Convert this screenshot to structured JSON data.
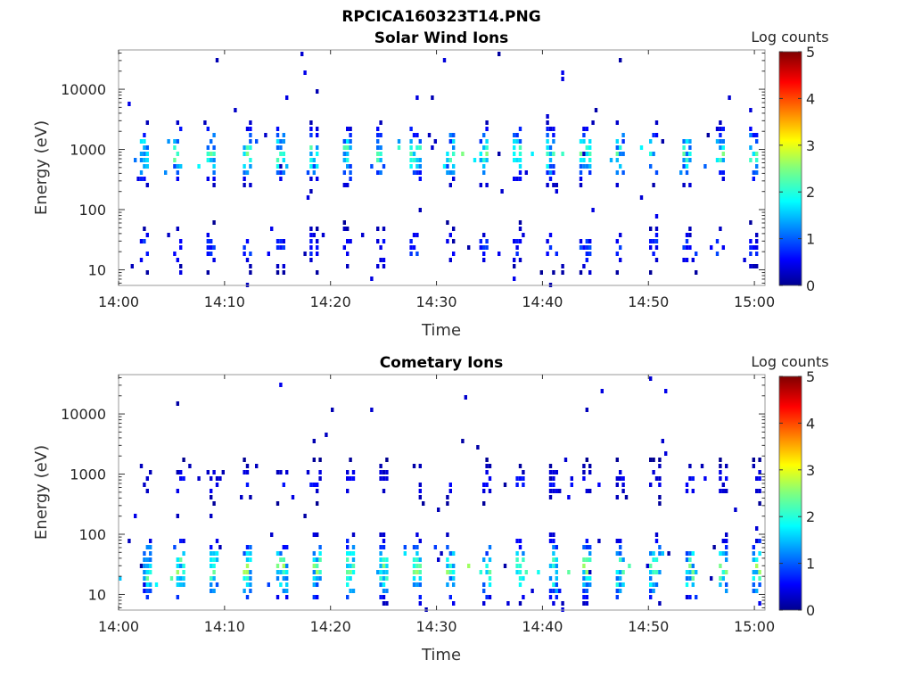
{
  "figure": {
    "title": "RPCICA160323T14.PNG"
  },
  "chart_data": [
    {
      "type": "heatmap",
      "title": "Solar Wind Ions",
      "xlabel": "Time",
      "ylabel": "Energy (eV)",
      "x_ticks": [
        "14:00",
        "14:10",
        "14:20",
        "14:30",
        "14:40",
        "14:50",
        "15:00"
      ],
      "x_range_minutes": [
        0,
        61
      ],
      "y_scale": "log",
      "y_ticks": [
        10,
        100,
        1000,
        10000
      ],
      "y_tick_labels": [
        "10",
        "100",
        "1000",
        "10000"
      ],
      "y_range": [
        5.5,
        45000
      ],
      "colorbar": {
        "label": "Log counts",
        "ticks": [
          "0",
          "1",
          "2",
          "3",
          "4",
          "5"
        ],
        "range": [
          0,
          5
        ],
        "colormap": "jet"
      },
      "description": "Periodic bursts roughly every 3.2 minutes; main population near 500-2500 eV peaking ~2-2.5 log counts at ~800 eV, secondary population near 15-60 eV at ~1 log counts",
      "bands": [
        {
          "energy_center": 900,
          "energy_spread_decades": 0.35,
          "peak_log_counts": 2.3
        },
        {
          "energy_center": 25,
          "energy_spread_decades": 0.28,
          "peak_log_counts": 1.0
        }
      ],
      "burst_period_minutes": 3.2,
      "burst_first_minute": 2.0
    },
    {
      "type": "heatmap",
      "title": "Cometary Ions",
      "xlabel": "Time",
      "ylabel": "Energy (eV)",
      "x_ticks": [
        "14:00",
        "14:10",
        "14:20",
        "14:30",
        "14:40",
        "14:50",
        "15:00"
      ],
      "x_range_minutes": [
        0,
        61
      ],
      "y_scale": "log",
      "y_ticks": [
        10,
        100,
        1000,
        10000
      ],
      "y_tick_labels": [
        "10",
        "100",
        "1000",
        "10000"
      ],
      "y_range": [
        5.5,
        45000
      ],
      "colorbar": {
        "label": "Log counts",
        "ticks": [
          "0",
          "1",
          "2",
          "3",
          "4",
          "5"
        ],
        "range": [
          0,
          5
        ],
        "colormap": "jet"
      },
      "description": "Periodic bursts roughly every 3.2 minutes; population near 12-150 eV peaking ~2-2.7 log counts at ~25 eV, sparse points near 500-2000 eV",
      "bands": [
        {
          "energy_center": 28,
          "energy_spread_decades": 0.4,
          "peak_log_counts": 2.5
        },
        {
          "energy_center": 800,
          "energy_spread_decades": 0.25,
          "peak_log_counts": 0.7
        }
      ],
      "burst_period_minutes": 3.2,
      "burst_first_minute": 2.2
    }
  ]
}
